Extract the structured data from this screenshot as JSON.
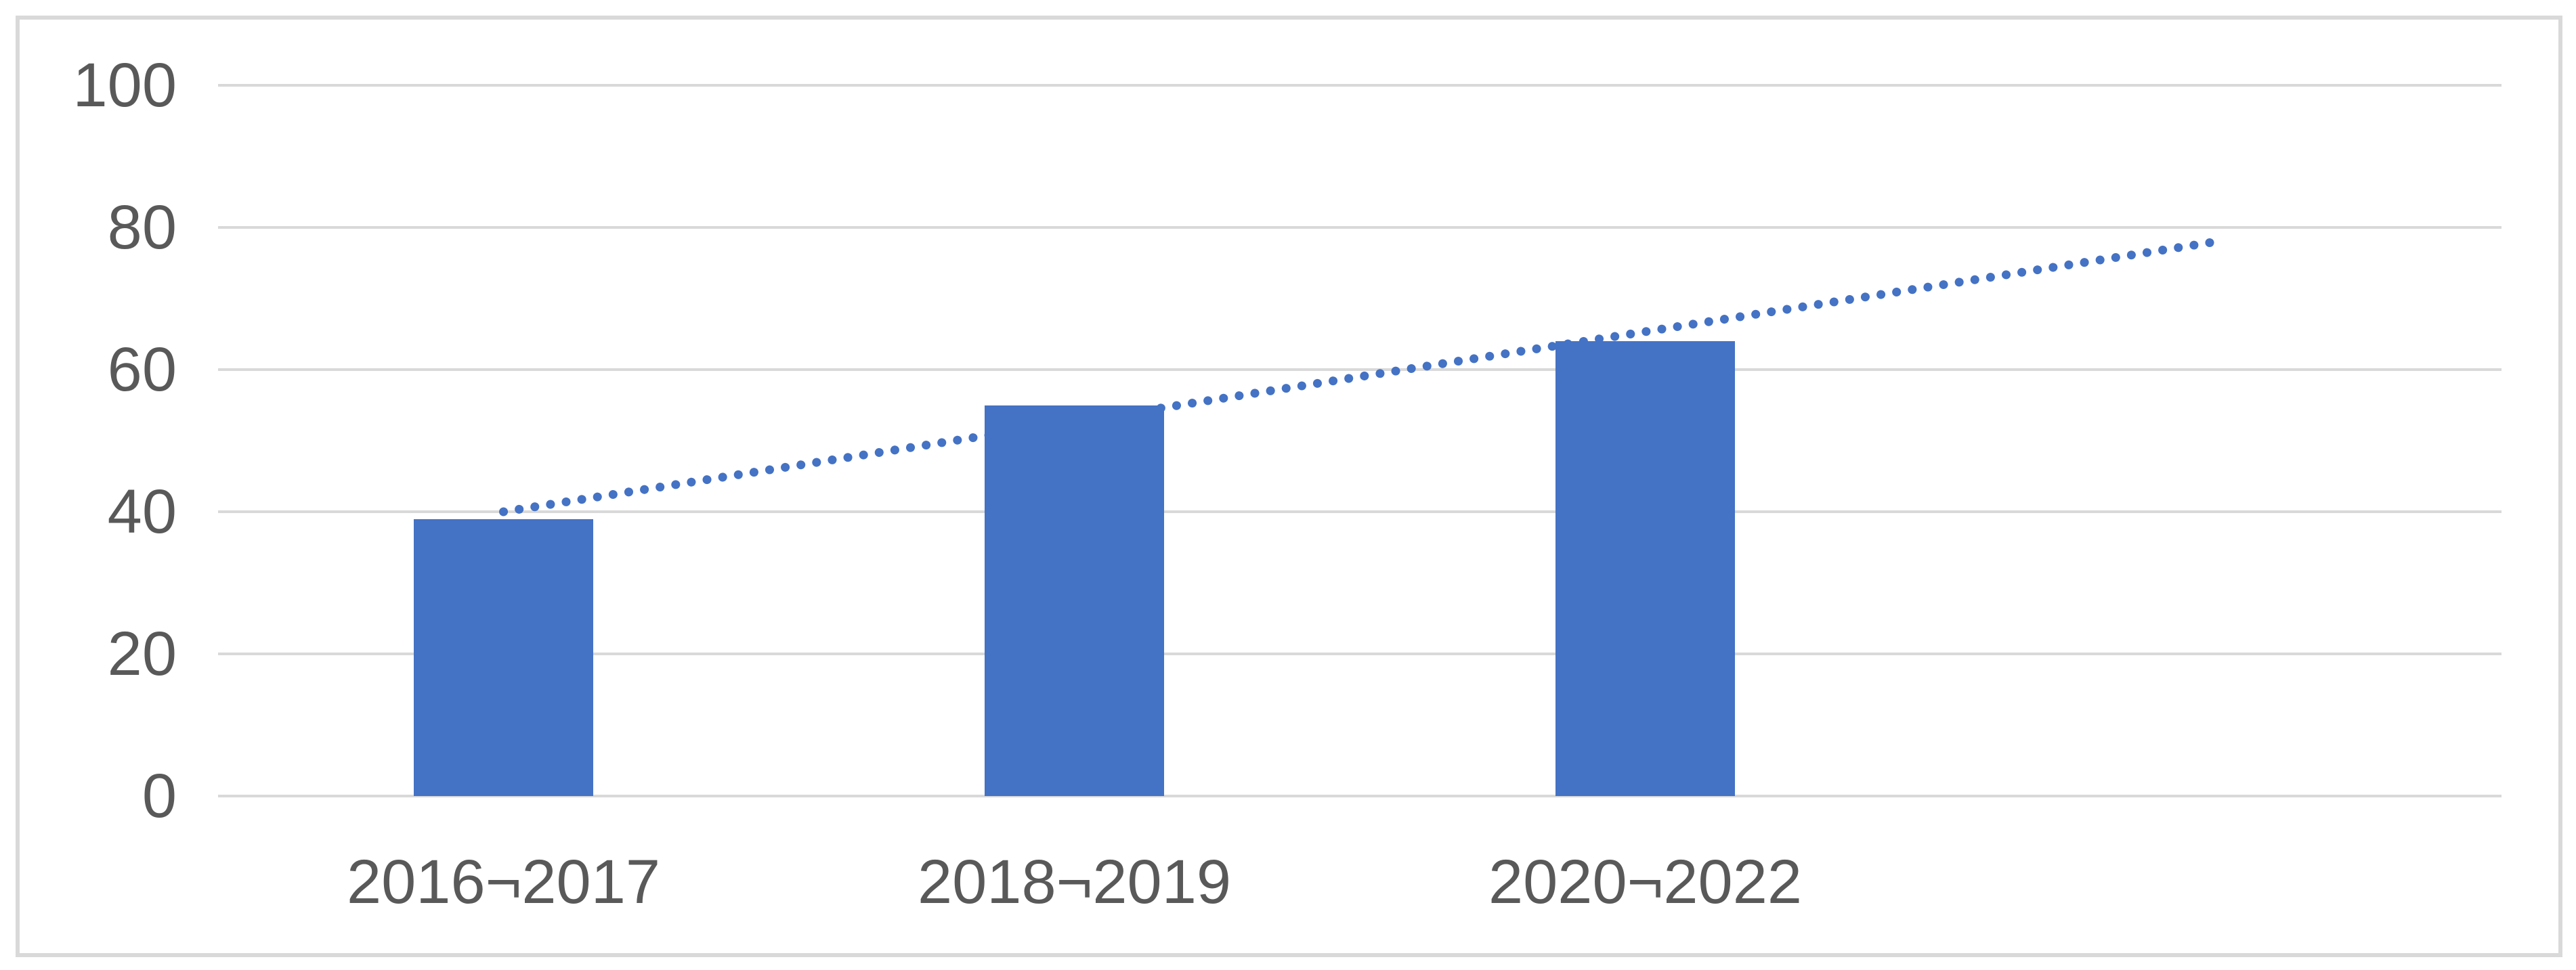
{
  "figure": {
    "background_color": "#ffffff",
    "frame_border_color": "#d9d9d9"
  },
  "chart_data": {
    "type": "bar",
    "title": "",
    "categories": [
      "2016¬2017",
      "2018¬2019",
      "2020¬2022"
    ],
    "values": [
      39,
      55,
      64
    ],
    "category_slots": 4,
    "yticks": [
      0,
      20,
      40,
      60,
      80,
      100
    ],
    "ylim": [
      0,
      100
    ],
    "grid": true,
    "legend": "none",
    "bar_color": "#4472c4",
    "gridline_color": "#d9d9d9",
    "tick_label_color": "#595959",
    "trendline": {
      "type": "linear",
      "style": "dotted",
      "color": "#4472c4",
      "start_slot": 1,
      "end_slot": 4,
      "start_value": 40,
      "end_value": 78
    }
  }
}
